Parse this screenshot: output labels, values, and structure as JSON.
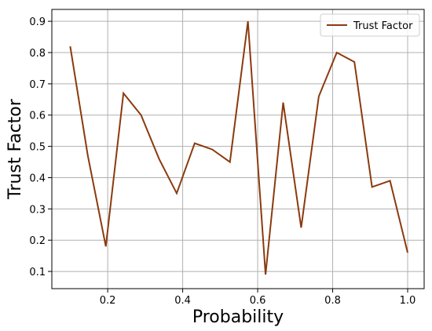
{
  "chart_data": {
    "type": "line",
    "x_label": "Probability",
    "y_label": "Trust Factor",
    "x": [
      0.1,
      0.147,
      0.195,
      0.242,
      0.289,
      0.337,
      0.384,
      0.432,
      0.479,
      0.526,
      0.574,
      0.621,
      0.668,
      0.716,
      0.763,
      0.811,
      0.858,
      0.905,
      0.953,
      1.0
    ],
    "series": [
      {
        "name": "Trust Factor",
        "color": "#8b3a0e",
        "values": [
          0.82,
          0.47,
          0.18,
          0.67,
          0.6,
          0.46,
          0.35,
          0.51,
          0.49,
          0.45,
          0.9,
          0.09,
          0.64,
          0.24,
          0.66,
          0.8,
          0.77,
          0.37,
          0.39,
          0.16
        ]
      }
    ],
    "xlim": [
      0.051,
      1.044
    ],
    "ylim": [
      0.045,
      0.938
    ],
    "xticks": [
      0.2,
      0.4,
      0.6,
      0.8,
      {
        "value": 1.0,
        "label": "1.0"
      }
    ],
    "yticks": [
      0.1,
      0.2,
      0.3,
      0.4,
      0.5,
      0.6,
      0.7,
      0.8,
      0.9
    ],
    "grid": true,
    "legend": "upper-right"
  }
}
